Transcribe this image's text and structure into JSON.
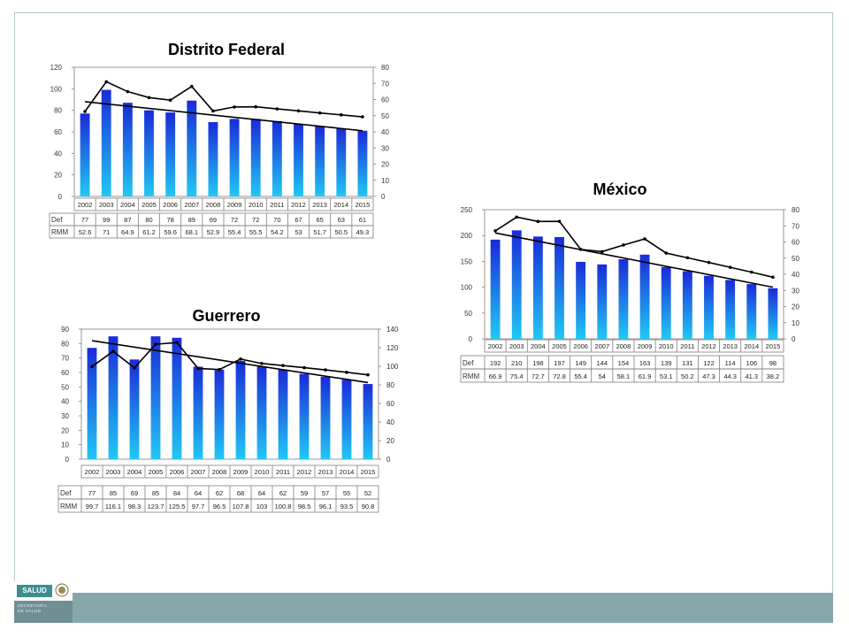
{
  "footer": {
    "logo_label": "SALUD",
    "logo_sub1": "SECRETARÍA",
    "logo_sub2": "DE SALUD",
    "band_color": "#86a7aa"
  },
  "colors": {
    "bar_top": "#1a2bd9",
    "bar_bottom": "#21c8f5",
    "line": "#000000"
  },
  "chart_data": [
    {
      "type": "bar",
      "title": "Distrito Federal",
      "categories": [
        "2002",
        "2003",
        "2004",
        "2005",
        "2006",
        "2007",
        "2008",
        "2009",
        "2010",
        "2011",
        "2012",
        "2013",
        "2014",
        "2015"
      ],
      "series": [
        {
          "name": "Def",
          "axis": "left",
          "type": "bar",
          "values": [
            77,
            99,
            87,
            80,
            78,
            89,
            69,
            72,
            72,
            70,
            67,
            65,
            63,
            61
          ]
        },
        {
          "name": "RMM",
          "axis": "right",
          "type": "line",
          "values": [
            52.6,
            71,
            64.9,
            61.2,
            59.6,
            68.1,
            52.9,
            55.4,
            55.5,
            54.2,
            53,
            51.7,
            50.5,
            49.3
          ]
        }
      ],
      "trendline": {
        "axis": "left",
        "values": [
          88,
          61
        ]
      },
      "yleft": {
        "min": 0,
        "max": 120,
        "ticks": [
          "0",
          "20",
          "40",
          "60",
          "80",
          "100",
          "120"
        ]
      },
      "yright": {
        "min": 0,
        "max": 80,
        "ticks": [
          "0",
          "10",
          "20",
          "30",
          "40",
          "50",
          "60",
          "70",
          "80"
        ]
      },
      "table_rows": [
        {
          "label": "Def",
          "values": [
            "77",
            "99",
            "87",
            "80",
            "78",
            "89",
            "69",
            "72",
            "72",
            "70",
            "67",
            "65",
            "63",
            "61"
          ]
        },
        {
          "label": "RMM",
          "values": [
            "52.6",
            "71",
            "64.9",
            "61.2",
            "59.6",
            "68.1",
            "52.9",
            "55.4",
            "55.5",
            "54.2",
            "53",
            "51.7",
            "50.5",
            "49.3"
          ]
        }
      ]
    },
    {
      "type": "bar",
      "title": "México",
      "categories": [
        "2002",
        "2003",
        "2004",
        "2005",
        "2006",
        "2007",
        "2008",
        "2009",
        "2010",
        "2011",
        "2012",
        "2013",
        "2014",
        "2015"
      ],
      "series": [
        {
          "name": "Def",
          "axis": "left",
          "type": "bar",
          "values": [
            192,
            210,
            198,
            197,
            149,
            144,
            154,
            163,
            139,
            131,
            122,
            114,
            106,
            98
          ]
        },
        {
          "name": "RMM",
          "axis": "right",
          "type": "line",
          "values": [
            66.9,
            75.4,
            72.7,
            72.8,
            55.4,
            54,
            58.1,
            61.9,
            53.1,
            50.2,
            47.3,
            44.3,
            41.3,
            38.2
          ]
        }
      ],
      "trendline": {
        "axis": "left",
        "values": [
          205,
          100
        ]
      },
      "yleft": {
        "min": 0,
        "max": 250,
        "ticks": [
          "0",
          "50",
          "100",
          "150",
          "200",
          "250"
        ]
      },
      "yright": {
        "min": 0,
        "max": 80,
        "ticks": [
          "0",
          "10",
          "20",
          "30",
          "40",
          "50",
          "60",
          "70",
          "80"
        ]
      },
      "table_rows": [
        {
          "label": "Def",
          "values": [
            "192",
            "210",
            "198",
            "197",
            "149",
            "144",
            "154",
            "163",
            "139",
            "131",
            "122",
            "114",
            "106",
            "98"
          ]
        },
        {
          "label": "RMM",
          "values": [
            "66.9",
            "75.4",
            "72.7",
            "72.8",
            "55.4",
            "54",
            "58.1",
            "61.9",
            "53.1",
            "50.2",
            "47.3",
            "44.3",
            "41.3",
            "38.2"
          ]
        }
      ]
    },
    {
      "type": "bar",
      "title": "Guerrero",
      "categories": [
        "2002",
        "2003",
        "2004",
        "2005",
        "2006",
        "2007",
        "2008",
        "2009",
        "2010",
        "2011",
        "2012",
        "2013",
        "2014",
        "2015"
      ],
      "series": [
        {
          "name": "Def",
          "axis": "left",
          "type": "bar",
          "values": [
            77,
            85,
            69,
            85,
            84,
            64,
            62,
            68,
            64,
            62,
            59,
            57,
            55,
            52
          ]
        },
        {
          "name": "RMM",
          "axis": "right",
          "type": "line",
          "values": [
            99.7,
            116.1,
            98.3,
            123.7,
            125.5,
            97.7,
            96.5,
            107.8,
            103,
            100.8,
            98.5,
            96.1,
            93.5,
            90.8
          ]
        }
      ],
      "trendline": {
        "axis": "left",
        "values": [
          82,
          53
        ]
      },
      "yleft": {
        "min": 0,
        "max": 90,
        "ticks": [
          "0",
          "10",
          "20",
          "30",
          "40",
          "50",
          "60",
          "70",
          "80",
          "90"
        ]
      },
      "yright": {
        "min": 0,
        "max": 140,
        "ticks": [
          "0",
          "20",
          "40",
          "60",
          "80",
          "100",
          "120",
          "140"
        ]
      },
      "table_rows": [
        {
          "label": "Def",
          "values": [
            "77",
            "85",
            "69",
            "85",
            "84",
            "64",
            "62",
            "68",
            "64",
            "62",
            "59",
            "57",
            "55",
            "52"
          ]
        },
        {
          "label": "RMM",
          "values": [
            "99.7",
            "116.1",
            "98.3",
            "123.7",
            "125.5",
            "97.7",
            "96.5",
            "107.8",
            "103",
            "100.8",
            "98.5",
            "96.1",
            "93.5",
            "90.8"
          ]
        }
      ]
    }
  ]
}
